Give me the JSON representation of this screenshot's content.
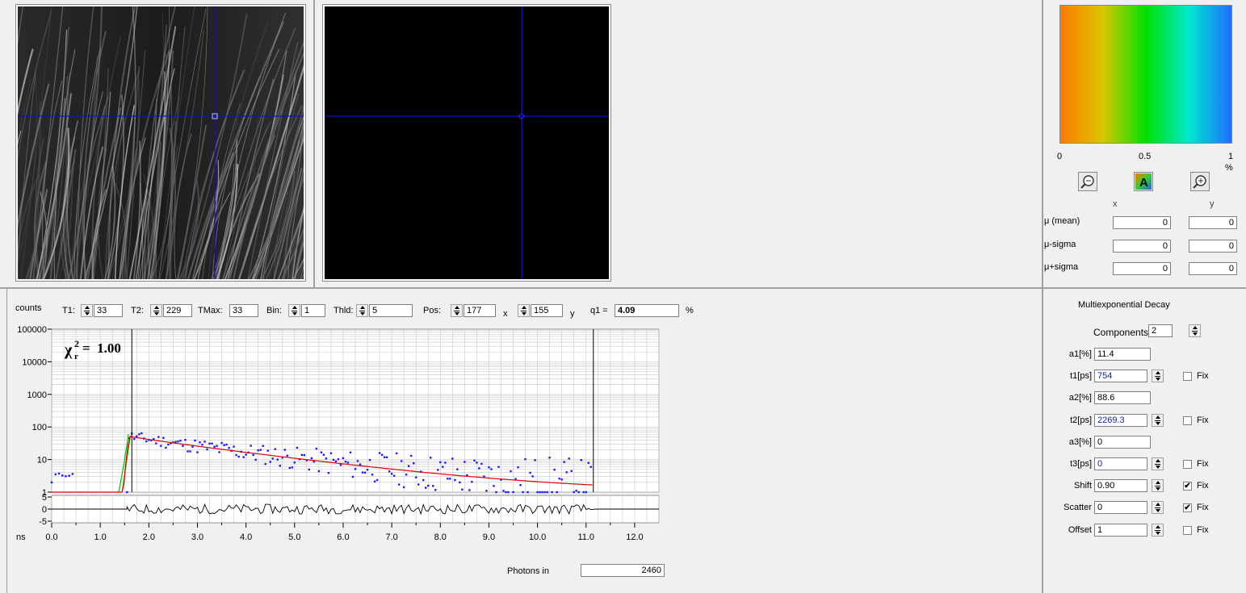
{
  "colorbar": {
    "tick_0": "0",
    "tick_mid": "0.5",
    "tick_1": "1",
    "unit": "%",
    "stops": [
      "#ff7a00",
      "#d8c800",
      "#00e000",
      "#00e8d0",
      "#1f6fff"
    ]
  },
  "stats": {
    "col_x": "x",
    "col_y": "y",
    "rows": [
      {
        "label": "μ (mean)",
        "x": "0",
        "y": "0"
      },
      {
        "label": "μ-sigma",
        "x": "0",
        "y": "0"
      },
      {
        "label": "μ+sigma",
        "x": "0",
        "y": "0"
      }
    ]
  },
  "toolbar": {
    "counts": "counts",
    "t1_label": "T1:",
    "t1": "33",
    "t2_label": "T2:",
    "t2": "229",
    "tmax_label": "TMax:",
    "tmax": "33",
    "bin_label": "Bin:",
    "bin": "1",
    "thld_label": "Thld:",
    "thld": "5",
    "pos_label": "Pos:",
    "pos_x": "177",
    "x_label": "x",
    "pos_y": "155",
    "y_label": "y",
    "q1_label": "q1 =",
    "q1": "4.09",
    "pct": "%"
  },
  "chart_data": {
    "type": "scatter",
    "yscale": "log",
    "ylim": [
      1,
      100000
    ],
    "xlim": [
      0,
      12.5
    ],
    "xlabel": "ns",
    "ylabel": "counts",
    "y_ticks": [
      "100000",
      "10000",
      "1000",
      "100",
      "10",
      "1"
    ],
    "x_ticks": [
      "0.0",
      "1.0",
      "2.0",
      "3.0",
      "4.0",
      "5.0",
      "6.0",
      "7.0",
      "8.0",
      "9.0",
      "10.0",
      "11.0",
      "12.0"
    ],
    "x_tick_values": [
      0,
      1,
      2,
      3,
      4,
      5,
      6,
      7,
      8,
      9,
      10,
      11,
      12
    ],
    "cursor_lines_ns": [
      1.65,
      11.15
    ],
    "chi_label": "χ",
    "chi_sub": "r",
    "chi_sup": "2",
    "chi_value": "=  1.00",
    "fit": {
      "amplitude": 50,
      "onset_ns": 1.6,
      "tau1_ns": 0.754,
      "tau2_ns": 2.2693,
      "a1": 0.114,
      "a2": 0.886
    },
    "residual_ticks": [
      "5",
      "0",
      "-5"
    ],
    "residual_ylim": [
      -5,
      5
    ],
    "colors": {
      "data": "#1a1aff",
      "fit": "#e00000",
      "irf": "#00c000",
      "grid": "#c8c8c8",
      "cursor": "#000000"
    }
  },
  "photons": {
    "label": "Photons in",
    "value": "2460"
  },
  "decay": {
    "title": "Multiexponential Decay",
    "components_label": "Components:",
    "components": "2",
    "fix_label": "Fix",
    "params": [
      {
        "label": "a1[%]",
        "value": "11.4",
        "spin": false,
        "fix": null,
        "blue": false
      },
      {
        "label": "t1[ps]",
        "value": "754",
        "spin": true,
        "fix": false,
        "blue": true
      },
      {
        "label": "a2[%]",
        "value": "88.6",
        "spin": false,
        "fix": null,
        "blue": false
      },
      {
        "label": "t2[ps]",
        "value": "2269.3",
        "spin": true,
        "fix": false,
        "blue": true
      },
      {
        "label": "a3[%]",
        "value": "0",
        "spin": false,
        "fix": null,
        "blue": false
      },
      {
        "label": "t3[ps]",
        "value": "0",
        "spin": true,
        "fix": false,
        "blue": true
      },
      {
        "label": "Shift",
        "value": "0.90",
        "spin": true,
        "fix": true,
        "blue": false
      },
      {
        "label": "Scatter",
        "value": "0",
        "spin": true,
        "fix": true,
        "blue": false
      },
      {
        "label": "Offset",
        "value": "1",
        "spin": true,
        "fix": false,
        "blue": false
      }
    ]
  }
}
